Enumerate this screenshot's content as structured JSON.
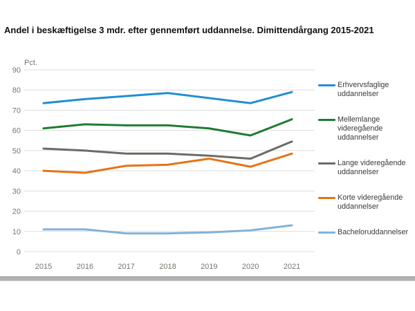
{
  "title": "Andel i beskæftigelse 3 mdr. efter gennemført uddannelse. Dimittendårgang 2015-2021",
  "chart_data": {
    "type": "line",
    "ylabel": "Pct.",
    "x": [
      2015,
      2016,
      2017,
      2018,
      2019,
      2020,
      2021
    ],
    "ylim": [
      0,
      90
    ],
    "ytick_step": 10,
    "grid": true,
    "legend_position": "right",
    "series": [
      {
        "name": "Erhvervsfaglige uddannelser",
        "color": "#1e8fd1",
        "values": [
          73.5,
          75.5,
          77,
          78.5,
          76,
          73.5,
          79
        ]
      },
      {
        "name": "Mellemlange videregående uddannelser",
        "color": "#1e7b33",
        "values": [
          61,
          63,
          62.5,
          62.5,
          61,
          57.5,
          65.5
        ]
      },
      {
        "name": "Lange videregående uddannelser",
        "color": "#6b6a64",
        "values": [
          51,
          50,
          48.5,
          48.5,
          47.5,
          46,
          54.5
        ]
      },
      {
        "name": "Korte videregående uddannelser",
        "color": "#e87210",
        "values": [
          40,
          39,
          42.5,
          43,
          46,
          42,
          48.5
        ]
      },
      {
        "name": "Bacheloruddannelser",
        "color": "#7fb2dc",
        "values": [
          11,
          11,
          9,
          9,
          9.5,
          10.5,
          13
        ]
      }
    ]
  },
  "style": {
    "gridline_color": "#dcdcdc",
    "scrollbar_color": "#b3b3b3"
  }
}
